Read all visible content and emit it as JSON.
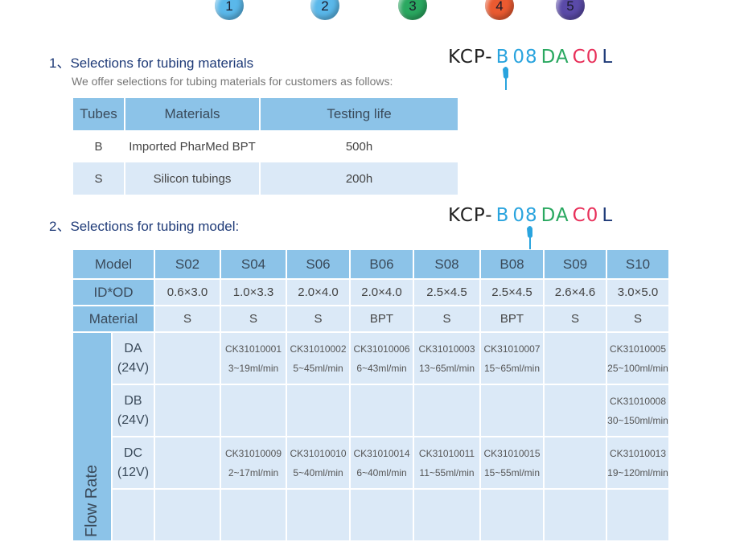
{
  "step_circles": [
    {
      "label": "1",
      "color": "#5ab8ea"
    },
    {
      "label": "2",
      "color": "#5ab8ea"
    },
    {
      "label": "3",
      "color": "#2aa860"
    },
    {
      "label": "4",
      "color": "#ea5a30"
    },
    {
      "label": "5",
      "color": "#5a4aa8"
    }
  ],
  "section1": {
    "title": "1、Selections for tubing materials",
    "desc": "We offer selections for tubing materials for customers as follows:",
    "headers": [
      "Tubes",
      "Materials",
      "Testing life"
    ],
    "rows": [
      [
        "B",
        "Imported PharMed BPT",
        "500h"
      ],
      [
        "S",
        "Silicon tubings",
        "200h"
      ]
    ]
  },
  "section2": {
    "title": "2、Selections for tubing model:",
    "model_label": "Model",
    "models": [
      "S02",
      "S04",
      "S06",
      "B06",
      "S08",
      "B08",
      "S09",
      "S10"
    ],
    "idod_label": "ID*OD",
    "idod": [
      "0.6×3.0",
      "1.0×3.3",
      "2.0×4.0",
      "2.0×4.0",
      "2.5×4.5",
      "2.5×4.5",
      "2.6×4.6",
      "3.0×5.0"
    ],
    "material_label": "Material",
    "materials": [
      "S",
      "S",
      "S",
      "BPT",
      "S",
      "BPT",
      "S",
      "S"
    ],
    "flow_rate_label": "Flow Rate",
    "flow_rows": [
      {
        "code": "DA",
        "volt": "(24V)",
        "cells": [
          [
            "",
            ""
          ],
          [
            "CK31010001",
            "3~19ml/min"
          ],
          [
            "CK31010002",
            "5~45ml/min"
          ],
          [
            "CK31010006",
            "6~43ml/min"
          ],
          [
            "CK31010003",
            "13~65ml/min"
          ],
          [
            "CK31010007",
            "15~65ml/min"
          ],
          [
            "",
            ""
          ],
          [
            "CK31010005",
            "25~100ml/min"
          ]
        ]
      },
      {
        "code": "DB",
        "volt": "(24V)",
        "cells": [
          [
            "",
            ""
          ],
          [
            "",
            ""
          ],
          [
            "",
            ""
          ],
          [
            "",
            ""
          ],
          [
            "",
            ""
          ],
          [
            "",
            ""
          ],
          [
            "",
            ""
          ],
          [
            "CK31010008",
            "30~150ml/min"
          ]
        ]
      },
      {
        "code": "DC",
        "volt": "(12V)",
        "cells": [
          [
            "",
            ""
          ],
          [
            "CK31010009",
            "2~17ml/min"
          ],
          [
            "CK31010010",
            "5~40ml/min"
          ],
          [
            "CK31010014",
            "6~40ml/min"
          ],
          [
            "CK31010011",
            "11~55ml/min"
          ],
          [
            "CK31010015",
            "15~55ml/min"
          ],
          [
            "",
            ""
          ],
          [
            "CK31010013",
            "19~120ml/min"
          ]
        ]
      }
    ]
  },
  "code_parts": [
    {
      "text": "KCP-",
      "color": "#222222"
    },
    {
      "text": "B",
      "color": "#2aa4de"
    },
    {
      "text": "08",
      "color": "#2aa4de"
    },
    {
      "text": "DA",
      "color": "#2aa860"
    },
    {
      "text": "C0",
      "color": "#e8305a"
    },
    {
      "text": "L",
      "color": "#1f3b78"
    }
  ]
}
